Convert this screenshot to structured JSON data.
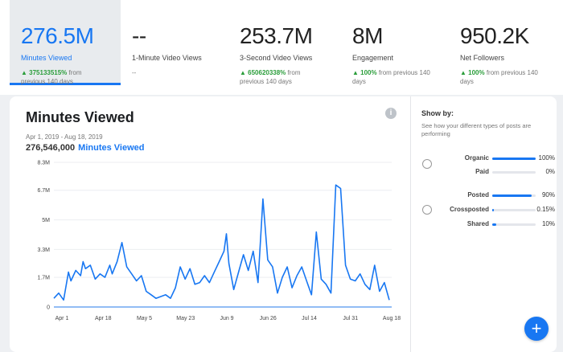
{
  "metrics": [
    {
      "value": "276.5M",
      "label": "Minutes Viewed",
      "change_pct": "375133515%",
      "change_text": " from",
      "change_text2": "previous 140 days",
      "active": true
    },
    {
      "value": "--",
      "label": "1-Minute Video Views",
      "change_pct": "",
      "change_text": "--",
      "change_text2": "",
      "active": false
    },
    {
      "value": "253.7M",
      "label": "3-Second Video Views",
      "change_pct": "650620338%",
      "change_text": " from",
      "change_text2": "previous 140 days",
      "active": false
    },
    {
      "value": "8M",
      "label": "Engagement",
      "change_pct": "100%",
      "change_text": " from previous 140",
      "change_text2": "days",
      "active": false
    },
    {
      "value": "950.2K",
      "label": "Net Followers",
      "change_pct": "100%",
      "change_text": " from previous 140",
      "change_text2": "days",
      "active": false
    }
  ],
  "chart_card": {
    "title": "Minutes Viewed",
    "info_icon": "i",
    "date_range": "Apr 1, 2019 - Aug 18, 2019",
    "total_value": "276,546,000",
    "total_label": "Minutes Viewed"
  },
  "show_by": {
    "title": "Show by:",
    "subtitle": "See how your different types of posts are performing",
    "groups": [
      {
        "rows": [
          {
            "name": "Organic",
            "pct": "100%",
            "fraction": 1.0
          },
          {
            "name": "Paid",
            "pct": "0%",
            "fraction": 0.0
          }
        ]
      },
      {
        "rows": [
          {
            "name": "Posted",
            "pct": "90%",
            "fraction": 0.9
          },
          {
            "name": "Crossposted",
            "pct": "0.15%",
            "fraction": 0.0015
          },
          {
            "name": "Shared",
            "pct": "10%",
            "fraction": 0.1
          }
        ]
      }
    ]
  },
  "fab": {
    "label": "+"
  },
  "colors": {
    "accent": "#1877f2",
    "positive": "#2a9d3a"
  },
  "chart_data": {
    "type": "line",
    "title": "",
    "xlabel": "",
    "ylabel": "",
    "x_tick_labels": [
      "Apr 1",
      "Apr 18",
      "May 5",
      "May 23",
      "Jun 9",
      "Jun 26",
      "Jul 14",
      "Jul 31",
      "Aug 18"
    ],
    "y_ticks": [
      0,
      1.7,
      3.3,
      5,
      6.7,
      8.3
    ],
    "y_tick_labels": [
      "0",
      "1.7M",
      "3.3M",
      "5M",
      "6.7M",
      "8.3M"
    ],
    "ylim": [
      0,
      8.3
    ],
    "y_unit": "millions of minutes",
    "x_range_days": [
      0,
      139
    ],
    "grid": true,
    "series": [
      {
        "x": [
          0,
          2,
          4,
          6,
          7,
          9,
          11,
          12,
          13,
          15,
          17,
          19,
          21,
          23,
          24,
          26,
          28,
          30,
          32,
          34,
          36,
          38,
          40,
          42,
          44,
          46,
          48,
          50,
          52,
          54,
          56,
          58,
          60,
          62,
          64,
          66,
          68,
          70,
          71,
          72,
          74,
          76,
          78,
          80,
          82,
          84,
          86,
          88,
          90,
          92,
          94,
          96,
          98,
          100,
          102,
          104,
          106,
          108,
          110,
          112,
          114,
          116,
          118,
          120,
          122,
          124,
          126,
          128,
          130,
          132,
          134,
          136,
          138
        ],
        "values": [
          0.5,
          0.8,
          0.4,
          2.0,
          1.5,
          2.1,
          1.8,
          2.6,
          2.2,
          2.4,
          1.6,
          1.9,
          1.7,
          2.4,
          1.9,
          2.6,
          3.7,
          2.3,
          1.9,
          1.5,
          1.8,
          0.9,
          0.7,
          0.5,
          0.6,
          0.7,
          0.5,
          1.1,
          2.3,
          1.6,
          2.2,
          1.3,
          1.4,
          1.8,
          1.4,
          2.0,
          2.6,
          3.2,
          4.2,
          2.5,
          1.0,
          2.0,
          3.0,
          2.1,
          3.2,
          1.4,
          6.2,
          2.7,
          2.3,
          0.8,
          1.7,
          2.3,
          1.1,
          1.8,
          2.3,
          1.5,
          0.7,
          4.3,
          1.6,
          1.3,
          0.8,
          7.0,
          6.8,
          2.4,
          1.6,
          1.5,
          1.9,
          1.3,
          1.0,
          2.4,
          0.9,
          1.4,
          0.4
        ]
      }
    ]
  }
}
